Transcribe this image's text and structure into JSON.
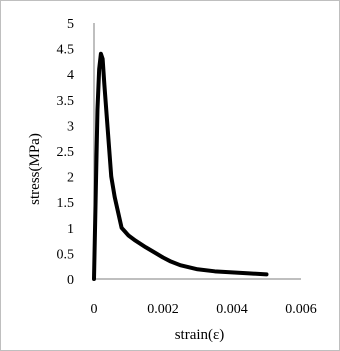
{
  "chart_data": {
    "type": "line",
    "title": "",
    "xlabel": "strain(ε)",
    "ylabel": "stress(MPa)",
    "xlim": [
      0,
      0.006
    ],
    "ylim": [
      0,
      5
    ],
    "x_ticks": [
      0,
      0.002,
      0.004,
      0.006
    ],
    "x_tick_labels": [
      "0",
      "0.002",
      "0.004",
      "0.006"
    ],
    "y_ticks": [
      0,
      0.5,
      1,
      1.5,
      2,
      2.5,
      3,
      3.5,
      4,
      4.5,
      5
    ],
    "y_tick_labels": [
      "0",
      "0.5",
      "1",
      "1.5",
      "2",
      "2.5",
      "3",
      "3.5",
      "4",
      "4.5",
      "5"
    ],
    "grid": false,
    "legend": "none",
    "series": [
      {
        "color": "#000000",
        "x": [
          0,
          0.0001,
          0.00015,
          0.0002,
          0.00025,
          0.0003,
          0.0004,
          0.0005,
          0.0006,
          0.0007,
          0.0008,
          0.001,
          0.0012,
          0.0015,
          0.0018,
          0.002,
          0.0022,
          0.0025,
          0.003,
          0.0035,
          0.004,
          0.0045,
          0.005
        ],
        "y": [
          0,
          3.3,
          4.1,
          4.4,
          4.3,
          3.8,
          2.9,
          2.0,
          1.6,
          1.3,
          1.0,
          0.85,
          0.75,
          0.62,
          0.5,
          0.42,
          0.35,
          0.27,
          0.19,
          0.15,
          0.13,
          0.11,
          0.09
        ]
      }
    ]
  }
}
